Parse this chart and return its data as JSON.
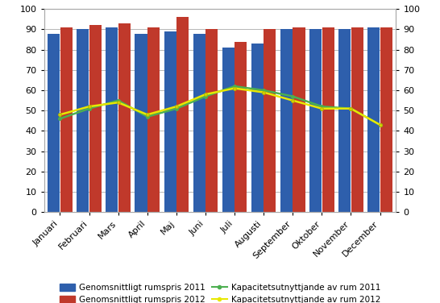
{
  "months": [
    "Januari",
    "Februari",
    "Mars",
    "April",
    "Maj",
    "Juni",
    "Juli",
    "Augusti",
    "September",
    "Oktober",
    "November",
    "December"
  ],
  "bar_2011": [
    88,
    90,
    91,
    88,
    89,
    88,
    81,
    83,
    90,
    90,
    90,
    91
  ],
  "bar_2012": [
    91,
    92,
    93,
    91,
    96,
    90,
    84,
    90,
    91,
    91,
    91,
    91
  ],
  "line_2011": [
    46,
    51,
    55,
    47,
    51,
    57,
    62,
    60,
    57,
    52,
    51,
    43
  ],
  "line_2012": [
    48,
    52,
    54,
    48,
    52,
    58,
    61,
    59,
    55,
    51,
    51,
    43
  ],
  "bar_color_2011": "#2E5FAC",
  "bar_color_2012": "#C0392B",
  "line_color_2011": "#4CAF50",
  "line_color_2012": "#E8E800",
  "ylim": [
    0,
    100
  ],
  "yticks": [
    0,
    10,
    20,
    30,
    40,
    50,
    60,
    70,
    80,
    90,
    100
  ],
  "legend_labels": [
    "Genomsnittligt rumspris 2011",
    "Genomsnittligt rumspris 2012",
    "Kapacitetsutnyttjande av rum 2011",
    "Kapacitetsutnyttjande av rum 2012"
  ],
  "background_color": "#FFFFFF",
  "grid_color": "#AAAAAA",
  "tick_fontsize": 8,
  "legend_fontsize": 7.5,
  "figsize": [
    5.46,
    3.76
  ],
  "dpi": 100
}
